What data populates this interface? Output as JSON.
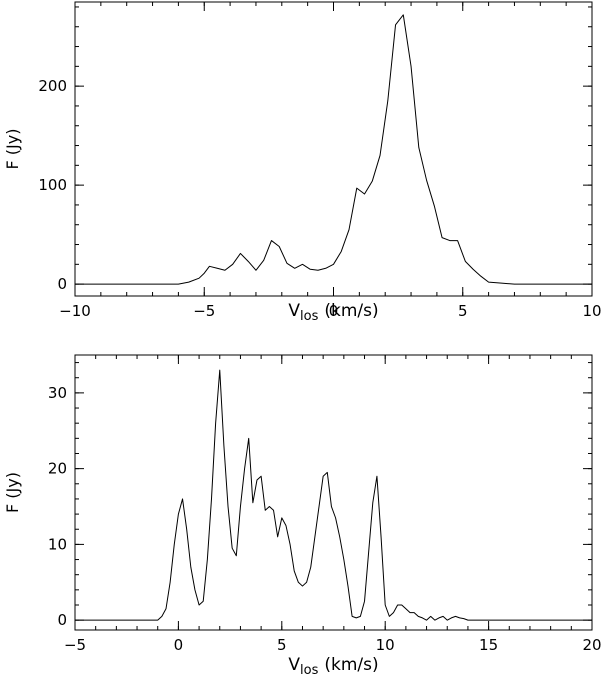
{
  "figure": {
    "panels": [
      {
        "id": "top",
        "plot": {
          "left": 75,
          "top": 2,
          "right": 592,
          "bottom": 296
        },
        "xlim": [
          -10,
          10
        ],
        "ylim": [
          -12,
          285
        ],
        "xmajor": [
          -10,
          -5,
          0,
          5,
          10
        ],
        "xminor_step": 1,
        "ymajor": [
          0,
          100,
          200
        ],
        "yminor_step": 20
      },
      {
        "id": "bottom",
        "plot": {
          "left": 75,
          "top": 355,
          "right": 592,
          "bottom": 630
        },
        "xlim": [
          -5,
          20
        ],
        "ylim": [
          -1.3,
          35
        ],
        "xmajor": [
          -5,
          0,
          5,
          10,
          15,
          20
        ],
        "xminor_step": 1,
        "ymajor": [
          0,
          10,
          20,
          30
        ],
        "yminor_step": 2
      }
    ]
  },
  "chart_data": [
    {
      "type": "line",
      "xlabel_main": "V",
      "xlabel_sub": "los",
      "xlabel_rest": "(km/s)",
      "ylabel": "F  (Jy)",
      "xlim": [
        -10,
        10
      ],
      "ylim": [
        -12,
        285
      ],
      "xticks": [
        "−10",
        "−5",
        "0",
        "5",
        "10"
      ],
      "yticks": [
        "0",
        "100",
        "200"
      ],
      "x": [
        -10,
        -9,
        -8,
        -7,
        -6,
        -5.6,
        -5.2,
        -5.0,
        -4.8,
        -4.5,
        -4.2,
        -3.9,
        -3.6,
        -3.3,
        -3.0,
        -2.7,
        -2.4,
        -2.1,
        -1.8,
        -1.5,
        -1.2,
        -0.9,
        -0.6,
        -0.3,
        0,
        0.3,
        0.6,
        0.9,
        1.2,
        1.5,
        1.8,
        2.1,
        2.4,
        2.7,
        3.0,
        3.3,
        3.6,
        3.9,
        4.2,
        4.5,
        4.8,
        5.1,
        5.4,
        5.7,
        6.0,
        6.5,
        7.0,
        8.0,
        9.0,
        10.0
      ],
      "y": [
        0,
        0,
        0,
        0,
        0,
        2,
        6,
        11,
        18,
        16,
        14,
        20,
        31,
        23,
        14,
        24,
        44,
        38,
        21,
        16,
        20,
        15,
        14,
        16,
        20,
        33,
        55,
        97,
        91,
        104,
        130,
        185,
        262,
        272,
        220,
        138,
        105,
        79,
        47,
        44,
        44,
        23,
        15,
        8,
        2,
        1,
        0,
        0,
        0,
        0
      ]
    },
    {
      "type": "line",
      "xlabel_main": "V",
      "xlabel_sub": "los",
      "xlabel_rest": "(km/s)",
      "ylabel": "F  (Jy)",
      "xlim": [
        -5,
        20
      ],
      "ylim": [
        -1.3,
        35
      ],
      "xticks": [
        "−5",
        "0",
        "5",
        "10",
        "15",
        "20"
      ],
      "yticks": [
        "0",
        "10",
        "20",
        "30"
      ],
      "x": [
        -5,
        -3,
        -1,
        -0.8,
        -0.6,
        -0.4,
        -0.2,
        0,
        0.2,
        0.4,
        0.6,
        0.8,
        1.0,
        1.2,
        1.4,
        1.6,
        1.8,
        2.0,
        2.2,
        2.4,
        2.6,
        2.8,
        3.0,
        3.2,
        3.4,
        3.6,
        3.8,
        4.0,
        4.2,
        4.4,
        4.6,
        4.8,
        5.0,
        5.2,
        5.4,
        5.6,
        5.8,
        6.0,
        6.2,
        6.4,
        6.6,
        6.8,
        7.0,
        7.2,
        7.4,
        7.6,
        7.8,
        8.0,
        8.2,
        8.4,
        8.6,
        8.8,
        9.0,
        9.2,
        9.4,
        9.6,
        9.8,
        10.0,
        10.2,
        10.4,
        10.6,
        10.8,
        11.0,
        11.2,
        11.4,
        11.6,
        11.8,
        12.0,
        12.2,
        12.4,
        12.6,
        12.8,
        13.0,
        13.2,
        13.4,
        13.6,
        13.8,
        14.0,
        14.2,
        14.4,
        14.6,
        14.8,
        15.0,
        15.2,
        15.4,
        15.6,
        15.8,
        16.0,
        16.2,
        16.4,
        16.6,
        16.8,
        17.0,
        17.2,
        18,
        19,
        20
      ],
      "y": [
        0,
        0,
        0,
        0.5,
        1.5,
        5,
        10,
        14,
        16,
        12,
        7,
        4,
        2,
        2.5,
        8,
        16,
        26,
        33,
        23,
        15,
        9.5,
        8.5,
        15,
        20,
        24,
        15.5,
        18.5,
        19,
        14.5,
        15,
        14.5,
        11,
        13.5,
        12.5,
        10,
        6.5,
        5,
        4.5,
        5,
        7,
        11,
        15,
        19,
        19.5,
        15,
        13.5,
        11,
        8,
        4.5,
        0.5,
        0.3,
        0.5,
        2.5,
        9,
        15.5,
        19,
        11,
        2,
        0.5,
        1,
        2,
        2,
        1.5,
        1,
        1,
        0.5,
        0.3,
        0,
        0.5,
        0,
        0.3,
        0.5,
        0,
        0.3,
        0.5,
        0.3,
        0.2,
        0,
        0,
        0,
        0,
        0,
        0,
        0,
        0,
        0,
        0,
        0,
        0,
        0,
        0,
        0,
        0,
        0,
        0,
        0,
        0
      ]
    }
  ]
}
